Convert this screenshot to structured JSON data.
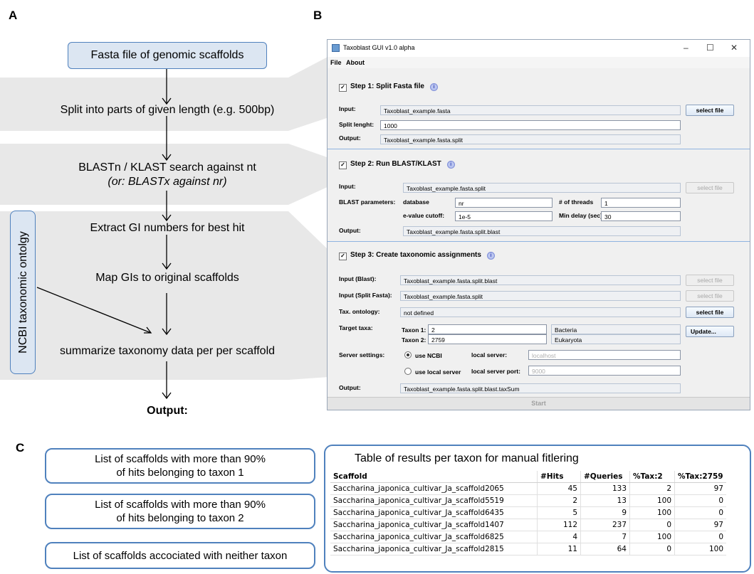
{
  "panel_labels": {
    "a": "A",
    "b": "B",
    "c": "C"
  },
  "flow": {
    "start": "Fasta file of genomic scaffolds",
    "step1": "Split into parts of given length (e.g. 500bp)",
    "step2_line1": "BLASTn / KLAST search against nt",
    "step2_line2": "(or: BLASTx against nr)",
    "step3": "Extract GI numbers for best hit",
    "step4": "Map GIs to original scaffolds",
    "step5": "summarize taxonomy data per per scaffold",
    "side_box": "NCBI taxonomic ontolgy",
    "output": "Output:",
    "colors": {
      "box_fill": "#dce6f2",
      "box_border": "#4f81bd",
      "band": "#e8e8e8"
    }
  },
  "gui": {
    "title": "Taxoblast GUI v1.0 alpha",
    "window_controls": [
      "–",
      "☐",
      "✕"
    ],
    "menu": [
      "File",
      "About"
    ],
    "step1": {
      "heading": "Step 1: Split Fasta file",
      "input_label": "Input:",
      "input_value": "Taxoblast_example.fasta",
      "select_button": "select file",
      "split_label": "Split lenght:",
      "split_value": "1000",
      "output_label": "Output:",
      "output_value": "Taxoblast_example.fasta.split"
    },
    "step2": {
      "heading": "Step 2: Run BLAST/KLAST",
      "input_label": "Input:",
      "input_value": "Taxoblast_example.fasta.split",
      "select_button": "select file",
      "params_label": "BLAST parameters:",
      "database_label": "database",
      "database_value": "nr",
      "threads_label": "# of threads",
      "threads_value": "1",
      "evalue_label": "e-value cutoff:",
      "evalue_value": "1e-5",
      "delay_label": "Min delay (sec)",
      "delay_value": "30",
      "output_label": "Output:",
      "output_value": "Taxoblast_example.fasta.split.blast"
    },
    "step3": {
      "heading": "Step 3: Create taxonomic assignments",
      "input_blast_label": "Input (Blast):",
      "input_blast_value": "Taxoblast_example.fasta.split.blast",
      "input_split_label": "Input (Split Fasta):",
      "input_split_value": "Taxoblast_example.fasta.split",
      "ontology_label": "Tax. ontology:",
      "ontology_value": "not defined",
      "select_button": "select file",
      "target_label": "Target taxa:",
      "taxon1_label": "Taxon 1:",
      "taxon1_value": "2",
      "taxon1_name": "Bacteria",
      "taxon2_label": "Taxon 2:",
      "taxon2_value": "2759",
      "taxon2_name": "Eukaryota",
      "update_button": "Update...",
      "server_label": "Server settings:",
      "use_ncbi": "use NCBI",
      "local_server_label": "local server:",
      "local_server_placeholder": "localhost",
      "use_local": "use local server",
      "local_port_label": "local server port:",
      "local_port_placeholder": "9000",
      "output_label": "Output:",
      "output_value": "Taxoblast_example.fasta.split.blast.taxSum"
    },
    "start_button": "Start"
  },
  "outputs": {
    "box1_line1": "List of scaffolds with more than 90%",
    "box1_line2": "of hits belonging to taxon 1",
    "box2_line1": "List of scaffolds with more than 90%",
    "box2_line2": "of hits belonging to taxon 2",
    "box3": "List of scaffolds accociated with neither taxon"
  },
  "results_table": {
    "title": "Table of results per taxon for manual fitlering",
    "columns": [
      "Scaffold",
      "#Hits",
      "#Queries",
      "%Tax:2",
      "%Tax:2759"
    ],
    "rows": [
      [
        "Saccharina_japonica_cultivar_Ja_scaffold2065",
        "45",
        "133",
        "2",
        "97"
      ],
      [
        "Saccharina_japonica_cultivar_Ja_scaffold5519",
        "2",
        "13",
        "100",
        "0"
      ],
      [
        "Saccharina_japonica_cultivar_Ja_scaffold6435",
        "5",
        "9",
        "100",
        "0"
      ],
      [
        "Saccharina_japonica_cultivar_Ja_scaffold1407",
        "112",
        "237",
        "0",
        "97"
      ],
      [
        "Saccharina_japonica_cultivar_Ja_scaffold6825",
        "4",
        "7",
        "100",
        "0"
      ],
      [
        "Saccharina_japonica_cultivar_Ja_scaffold2815",
        "11",
        "64",
        "0",
        "100"
      ]
    ]
  }
}
